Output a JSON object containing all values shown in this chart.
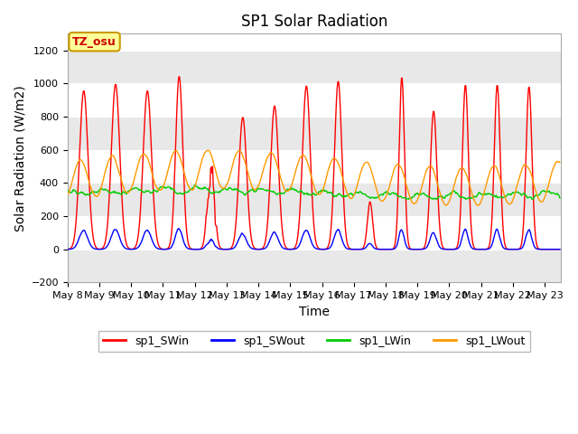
{
  "title": "SP1 Solar Radiation",
  "xlabel": "Time",
  "ylabel": "Solar Radiation (W/m2)",
  "ylim": [
    -200,
    1300
  ],
  "yticks": [
    -200,
    0,
    200,
    400,
    600,
    800,
    1000,
    1200
  ],
  "x_tick_labels": [
    "May 8",
    "May 9",
    "May 10",
    "May 11",
    "May 12",
    "May 13",
    "May 14",
    "May 15",
    "May 16",
    "May 17",
    "May 18",
    "May 19",
    "May 20",
    "May 21",
    "May 22",
    "May 23"
  ],
  "colors": {
    "SWin": "#ff0000",
    "SWout": "#0000ff",
    "LWin": "#00cc00",
    "LWout": "#ff9900"
  },
  "legend_labels": [
    "sp1_SWin",
    "sp1_SWout",
    "sp1_LWin",
    "sp1_LWout"
  ],
  "annotation_text": "TZ_osu",
  "annotation_bg": "#ffff99",
  "annotation_border": "#cc9900",
  "fig_bg": "#ffffff",
  "plot_bg": "#ffffff",
  "grid_color": "#e0e0e0",
  "band_color": "#e8e8e8",
  "title_fontsize": 12,
  "axis_fontsize": 10,
  "tick_fontsize": 8,
  "sw_peaks": [
    960,
    1000,
    960,
    1050,
    660,
    800,
    870,
    990,
    1020,
    290,
    1050,
    840,
    1000,
    1000,
    990,
    0
  ],
  "sw_widths": [
    0.13,
    0.13,
    0.13,
    0.11,
    0.1,
    0.12,
    0.12,
    0.12,
    0.11,
    0.08,
    0.08,
    0.1,
    0.09,
    0.09,
    0.09,
    0.09
  ]
}
